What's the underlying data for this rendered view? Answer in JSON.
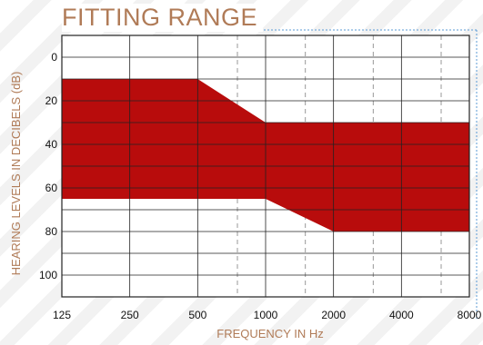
{
  "chart_data": {
    "type": "area",
    "title": "FITTING RANGE",
    "xlabel": "FREQUENCY IN Hz",
    "ylabel": "HEARING LEVELS IN DECIBELS (dB)",
    "x_scale": "log",
    "x_ticks": [
      "125",
      "250",
      "500",
      "1000",
      "2000",
      "4000",
      "8000"
    ],
    "x_minor_ticks": [
      750,
      1500,
      3000,
      6000
    ],
    "y_ticks": [
      "0",
      "20",
      "40",
      "60",
      "80",
      "100"
    ],
    "y_inverted": true,
    "xlim": [
      125,
      8000
    ],
    "ylim": [
      -10,
      110
    ],
    "grid": true,
    "series": [
      {
        "upper_boundary": {
          "x": [
            125,
            500,
            1000,
            8000
          ],
          "y": [
            10,
            10,
            30,
            30
          ]
        },
        "lower_boundary": {
          "x": [
            125,
            1000,
            2000,
            8000
          ],
          "y": [
            65,
            65,
            80,
            80
          ]
        }
      }
    ]
  },
  "colors": {
    "fill": "#b80c0c",
    "title": "#b07b57",
    "frame_accent": "#5b9bd5",
    "grid": "#222222",
    "minor_grid": "#999999"
  }
}
